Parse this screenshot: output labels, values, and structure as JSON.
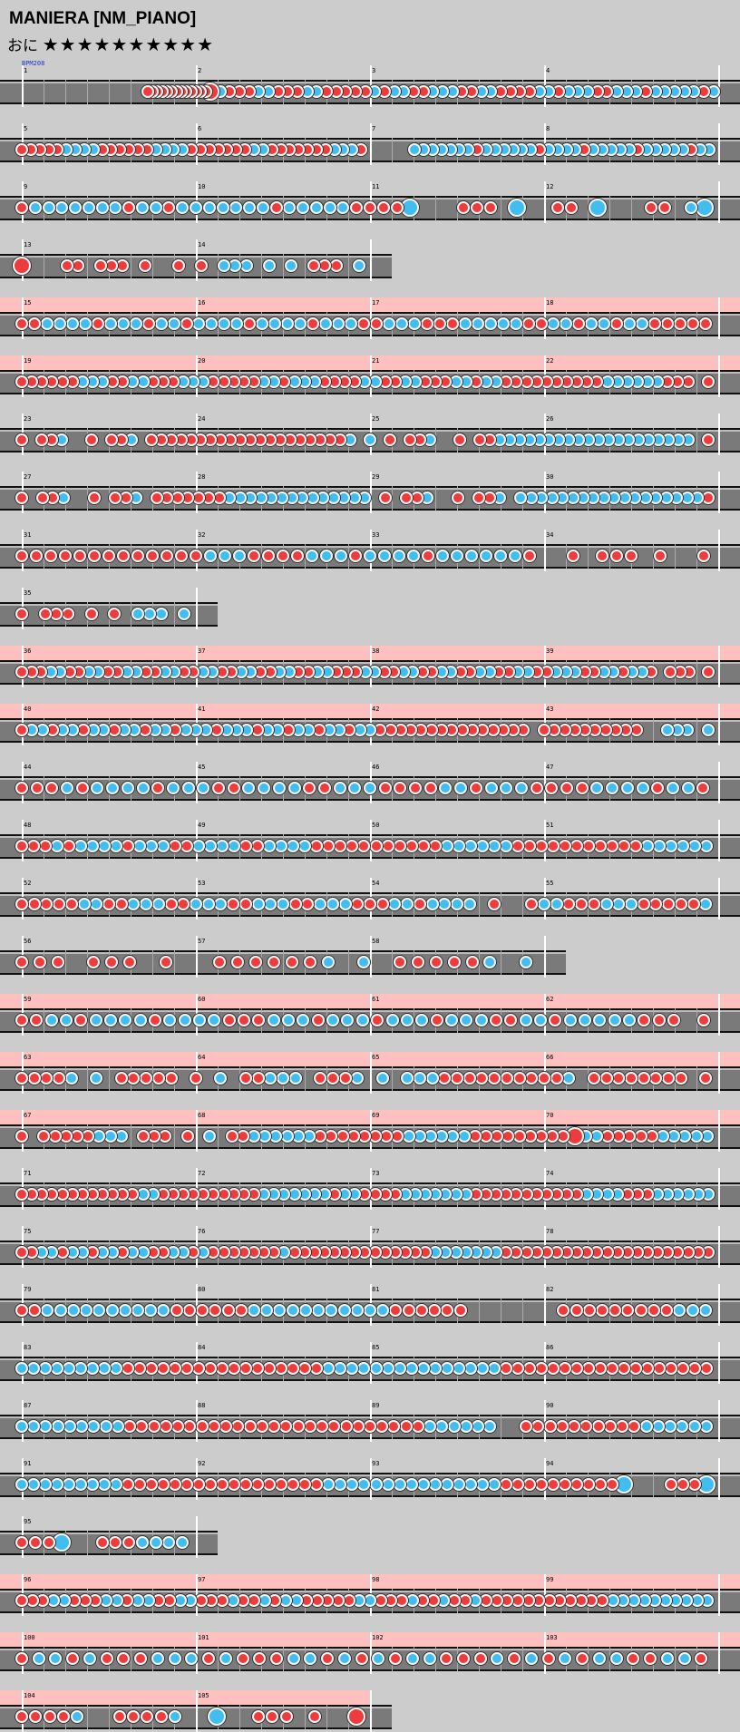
{
  "song": {
    "title": "MANIERA [NM_PIANO]",
    "difficulty": "おに",
    "stars": "★★★★★★★★★★",
    "bpm_label": "BPM208"
  },
  "colors": {
    "don": "#ee3c3c",
    "ka": "#41bdf0",
    "lane": "#7a7a7a",
    "gogo": "#ffc0c0",
    "background": "#cccccc"
  },
  "rows": [
    {
      "start": 1,
      "measures": 4,
      "gogo": false,
      "notes": "..........................dddddddddddddD.k.d.d.d.k.k.d.d.d.k.k.d.d.d.d.d.k.d.k.k.d.d.k.k.k.d.d.k.k.d.d.d.d.k.k.d.k.k.k.d.d.k.k.k.d.k.k.k.k.k.d.k"
    },
    {
      "start": 5,
      "measures": 4,
      "gogo": false,
      "notes": "dddddkkkkddddddkkkkdddddddkkdddddddkkkd.....kkkkkkkdkkkkkkdkkkkdkkkkkdkkkkkdkk"
    },
    {
      "start": 9,
      "measures": 4,
      "gogo": false,
      "notes": "dkkkkkkkdkkdkkkkkkkdkkkkkddddK...ddd.K..dd.K...dd.kK"
    },
    {
      "start": 13,
      "measures": 2,
      "gogo": false,
      "notes": "D...dd.ddd.d..d.d.kkk.k.k.ddd.k"
    },
    {
      "start": 15,
      "measures": 4,
      "gogo": true,
      "notes": "ddkkkkdkkkdkkdkkkkdkkkkdkkkddkkkdddkkkkkddkkdkkdkkddddd"
    },
    {
      "start": 19,
      "measures": 4,
      "gogo": true,
      "notes": "ddddddkkkddkkdddkkkdddddkkdkkkddddkkddkkdddkkdkkddddddddddkkkkkkddd.d"
    },
    {
      "start": 23,
      "measures": 4,
      "gogo": false,
      "notes": "d.ddk..d.ddk.ddddddddddddddddddddk.k.d.ddk..d.ddkkkkkkkkkkkkkkkkkkkk.d"
    },
    {
      "start": 27,
      "measures": 4,
      "gogo": false,
      "notes": "d.ddk..d.ddk.dddddddkkkkkkkkkkkkkk.d.ddk..d.ddk.kkkkkkkkkkkkkkkkkkd"
    },
    {
      "start": 31,
      "measures": 4,
      "gogo": false,
      "notes": "dddddddddddddkkkddddkkkdkkkkdkkkkkkd..d.ddd.d..d"
    },
    {
      "start": 35,
      "measures": 1,
      "gogo": false,
      "notes": "d.ddd.d.d.kkk.k"
    },
    {
      "start": 36,
      "measures": 4,
      "gogo": true,
      "notes": "dddkkddkkddkkddkkddkkddkkddkkddkkdddkkddkkddkkddkkddkkddkkkddkkdkkd.ddd.d"
    },
    {
      "start": 40,
      "measures": 4,
      "gogo": true,
      "notes": "dkkdkkdkkdkkdkkdkkkdkkkdkkdkkdkkdkkddddddddddddddd.dddddddddd..kkk.k"
    },
    {
      "start": 44,
      "measures": 4,
      "gogo": false,
      "notes": "dddkdkkkkdkkkddkkkkddkkkddddkkdkkkddddkkkkdkkd"
    },
    {
      "start": 48,
      "measures": 4,
      "gogo": false,
      "notes": "dddkdkkkkdkkkddkkkkddkkkkdddddddddddkkkkkkdddddddddddkkkkkk"
    },
    {
      "start": 52,
      "measures": 4,
      "gogo": false,
      "notes": "dddddkkddkkkddkkkddkkkddkkkdddkkdkkkk.d..dkkdddkkkdddddk"
    },
    {
      "start": 56,
      "measures": 3,
      "gogo": false,
      "notes": "ddd.ddd.d..ddddddk.k.dddddk.k"
    },
    {
      "start": 59,
      "measures": 4,
      "gogo": true,
      "notes": "ddkkdkkkkdkkkkdddkkkdkkkdkkkdkkkddkkdkkkkkddd.d"
    },
    {
      "start": 63,
      "measures": 4,
      "gogo": true,
      "notes": "ddddk.k.ddddd.d.k.ddkkk.dddk.k.kkkddddddddddk.dddddddd.d"
    },
    {
      "start": 67,
      "measures": 4,
      "gogo": true,
      "notes": "d.dddddkkk.ddd.d.k.ddkkkkkkddddddddkkkkkkdddddddddDkkdddddkkkkk"
    },
    {
      "start": 71,
      "measures": 4,
      "gogo": false,
      "notes": "ddddddddddddkkddddddddddkkkkkkkdkkddddkkkkkkkdddddddddddkkkkdddkkkkkk"
    },
    {
      "start": 75,
      "measures": 4,
      "gogo": false,
      "notes": "ddkkdkkdkkdkkddkkdkdddddddkddddddddddddddkkkkkkkddddddddddddddddddddd"
    },
    {
      "start": 79,
      "measures": 4,
      "gogo": false,
      "notes": "ddkkkkkkkkkkddddddkkkkkkkkkkkdddddd.......dddddddddkkk"
    },
    {
      "start": 83,
      "measures": 4,
      "gogo": false,
      "notes": "kkkkkkkkkdddddddddddddddddkkkkkkkkkkkkkkkdddddddddddddddddd"
    },
    {
      "start": 87,
      "measures": 4,
      "gogo": false,
      "notes": "kkkkkkkkkdddddddddddddddddddddddddkkkkkk..ddddddddddkkkkkk"
    },
    {
      "start": 91,
      "measures": 4,
      "gogo": false,
      "notes": "kkkkkkkkkdddddddddddddddddkkkkkkkkkkkkkkkddddddddddK...dddK"
    },
    {
      "start": 95,
      "measures": 1,
      "gogo": false,
      "notes": "dddK..dddkkkk"
    },
    {
      "start": 96,
      "measures": 4,
      "gogo": true,
      "notes": "dddkkdddkkdkkddkkdddkddkdkkdddddkkdddkddkddkddddddddddddkkkkkkkkkk"
    },
    {
      "start": 100,
      "measures": 4,
      "gogo": true,
      "notes": "dkkdkdddkkkdkdddkkdkdkdkkdddkdkdkdkkddkkd"
    },
    {
      "start": 104,
      "measures": 2,
      "gogo": true,
      "notes": "ddddk..ddddk..K..ddd.d..D"
    }
  ]
}
